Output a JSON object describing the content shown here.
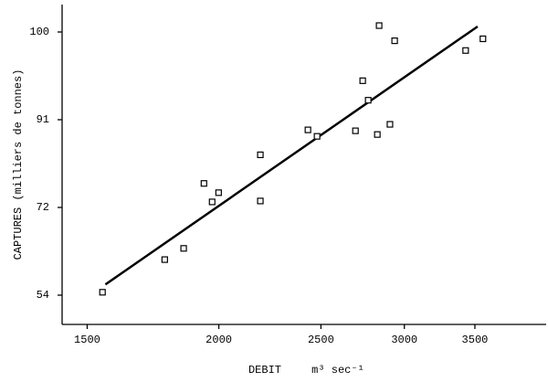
{
  "chart_data": {
    "type": "scatter",
    "x_label": "DEBIT",
    "x_unit": "m³ sec⁻¹",
    "y_label": "CAPTURES (milliers de tonnes)",
    "x": [
      1551,
      1777,
      1852,
      1936,
      1971,
      1999,
      2190,
      2190,
      2430,
      2479,
      2696,
      2739,
      2772,
      2828,
      2839,
      2907,
      2937,
      3430,
      3562
    ],
    "y": [
      54.6,
      61.3,
      63.6,
      77.2,
      73.2,
      75.2,
      83.4,
      73.4,
      88.8,
      87.4,
      88.6,
      95.0,
      93.0,
      87.8,
      100.7,
      90.0,
      99.1,
      98.1,
      99.3
    ],
    "fit": {
      "x": [
        1561,
        3521
      ],
      "y": [
        56.2,
        100.6
      ]
    },
    "xscale": "log",
    "xlim": [
      1420,
      4090
    ],
    "xticks": [
      1500,
      2000,
      2500,
      3000,
      3500
    ],
    "ylim": [
      48,
      103
    ],
    "yticks": [
      54,
      72,
      91,
      100
    ],
    "yscale": "tick-spaced"
  }
}
